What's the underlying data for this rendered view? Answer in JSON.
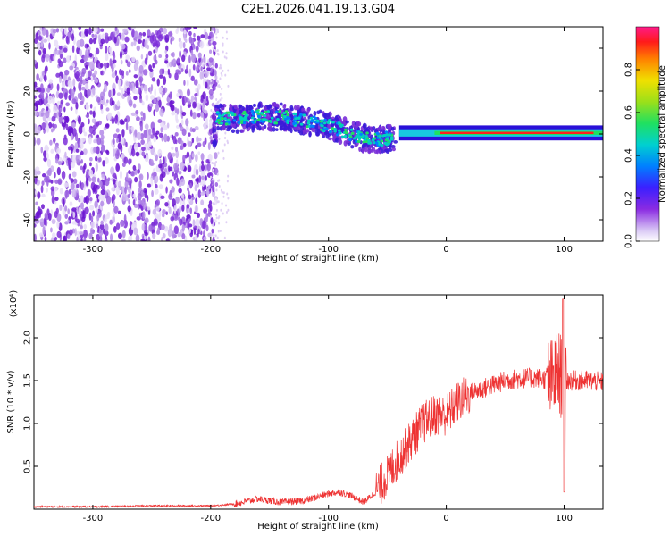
{
  "chart_data": [
    {
      "type": "heatmap",
      "title": "C2E1.2026.041.19.13.G04",
      "xlabel": "Height of straight line (km)",
      "ylabel": "Frequency (Hz)",
      "xlim": [
        -350,
        133
      ],
      "ylim": [
        -50,
        50
      ],
      "xticks": [
        -300,
        -200,
        -100,
        0,
        100
      ],
      "yticks": [
        -40,
        -20,
        0,
        20,
        40
      ],
      "colorbar": {
        "label": "Normalized spectral amplitude",
        "range": [
          0,
          1
        ],
        "ticks": [
          "0.0",
          "0.2",
          "0.4",
          "0.6",
          "0.8"
        ]
      },
      "signal_track": [
        {
          "x": -195,
          "y": 8
        },
        {
          "x": -180,
          "y": 7
        },
        {
          "x": -160,
          "y": 8
        },
        {
          "x": -140,
          "y": 8
        },
        {
          "x": -120,
          "y": 6
        },
        {
          "x": -100,
          "y": 4
        },
        {
          "x": -80,
          "y": 0
        },
        {
          "x": -65,
          "y": -3
        },
        {
          "x": -50,
          "y": -2
        },
        {
          "x": -35,
          "y": 0
        },
        {
          "x": -20,
          "y": 1
        },
        {
          "x": 0,
          "y": 1
        },
        {
          "x": 40,
          "y": 0.5
        },
        {
          "x": 80,
          "y": 0.5
        },
        {
          "x": 133,
          "y": 0.5
        }
      ]
    },
    {
      "type": "line",
      "xlabel": "Height of straight line (km)",
      "ylabel": "SNR (10 * v/v)",
      "multiplier": "(x10⁴)",
      "xlim": [
        -350,
        133
      ],
      "ylim": [
        0,
        2.5
      ],
      "xticks": [
        -300,
        -200,
        -100,
        0,
        100
      ],
      "yticks": [
        "0.5",
        "1.0",
        "1.5",
        "2.0"
      ],
      "color": "#ee3333",
      "series": [
        {
          "x": [
            -350,
            -300,
            -250,
            -200,
            -180,
            -160,
            -140,
            -120,
            -100,
            -90,
            -80,
            -70,
            -60,
            -50,
            -40,
            -30,
            -20,
            -10,
            0,
            10,
            20,
            30,
            40,
            50,
            60,
            70,
            80,
            90,
            95,
            100,
            105,
            110,
            120,
            133
          ],
          "values": [
            0.03,
            0.03,
            0.04,
            0.04,
            0.06,
            0.12,
            0.08,
            0.1,
            0.18,
            0.2,
            0.15,
            0.08,
            0.2,
            0.4,
            0.6,
            0.8,
            1.0,
            1.1,
            1.1,
            1.25,
            1.35,
            1.4,
            1.45,
            1.5,
            1.52,
            1.53,
            1.53,
            1.5,
            1.6,
            1.5,
            1.5,
            1.5,
            1.5,
            1.48
          ]
        }
      ]
    }
  ]
}
